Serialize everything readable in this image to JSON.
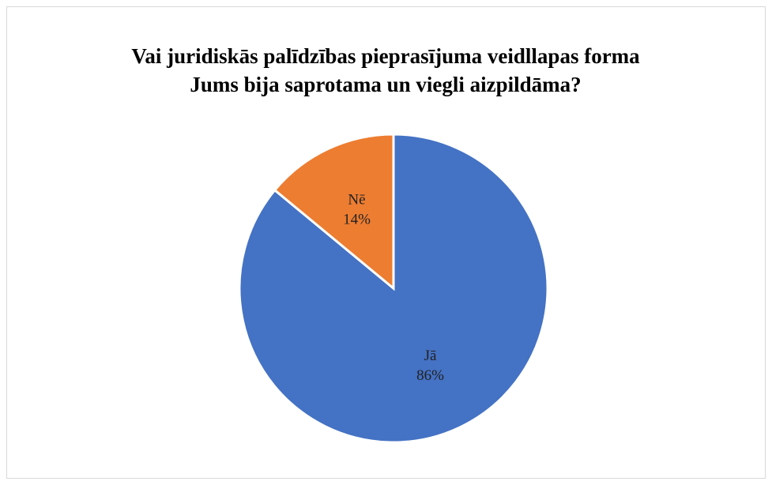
{
  "chart_data": {
    "type": "pie",
    "title": [
      "Vai juridiskās palīdzības pieprasījuma veidllapas forma",
      "Jums bija saprotama un viegli aizpildāma?"
    ],
    "categories": [
      "Jā",
      "Nē"
    ],
    "values": [
      86,
      14
    ],
    "value_labels": [
      "86%",
      "14%"
    ],
    "colors": [
      "#4472c4",
      "#ed7d31"
    ]
  }
}
